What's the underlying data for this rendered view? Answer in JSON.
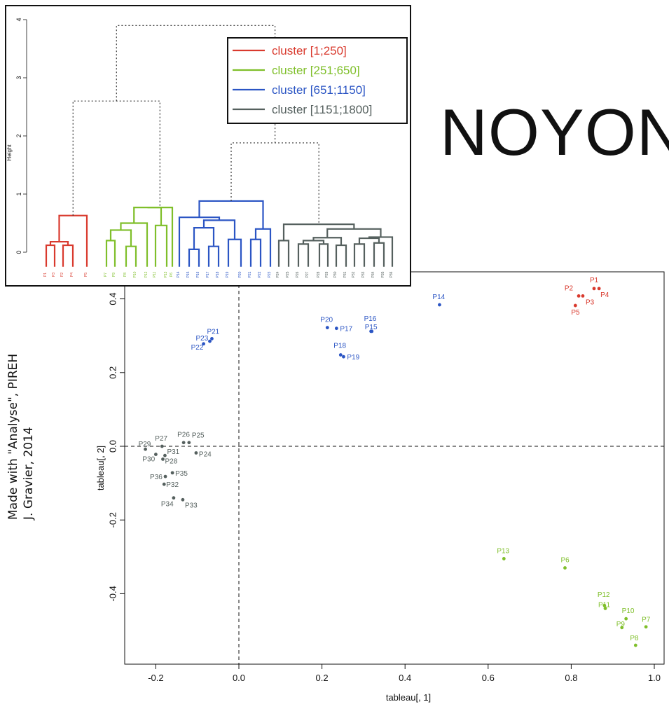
{
  "title": "NOYON",
  "credit": {
    "line1": "Made with \"Analyse\", PIREH",
    "line2": "J. Gravier, 2014"
  },
  "legend": [
    {
      "label": "cluster [1;250]",
      "color": "#d93a2e"
    },
    {
      "label": "cluster [251;650]",
      "color": "#7fbf2a"
    },
    {
      "label": "cluster [651;1150]",
      "color": "#2b55c4"
    },
    {
      "label": "cluster [1151;1800]",
      "color": "#55605e"
    }
  ],
  "dendrogram": {
    "ylabel": "Height",
    "yticks": [
      "0",
      "1",
      "2",
      "3",
      "4"
    ],
    "leaves": [
      "P1",
      "P3",
      "P2",
      "P4",
      "P5",
      "P7",
      "P9",
      "P8",
      "P10",
      "P12",
      "P11",
      "P13",
      "P6",
      "P14",
      "P15",
      "P16",
      "P17",
      "P18",
      "P19",
      "P20",
      "P21",
      "P22",
      "P23",
      "P24",
      "P25",
      "P26",
      "P27",
      "P28",
      "P29",
      "P30",
      "P31",
      "P32",
      "P33",
      "P34",
      "P35",
      "P36"
    ]
  },
  "chart_data": {
    "type": "scatter",
    "xlabel": "tableau[, 1]",
    "ylabel": "tableau[, 2]",
    "xlim": [
      -0.27,
      1.03
    ],
    "ylim": [
      -0.575,
      0.46
    ],
    "xticks": [
      "-0.2",
      "0.0",
      "0.2",
      "0.4",
      "0.6",
      "0.8",
      "1.0"
    ],
    "yticks": [
      "-0.4",
      "-0.2",
      "0.0",
      "0.2",
      "0.4"
    ],
    "reference_lines": {
      "x": 0,
      "y": 0
    },
    "series": [
      {
        "color": "#d93a2e",
        "points": [
          {
            "label": "P1",
            "x": 0.855,
            "y": 0.428
          },
          {
            "label": "P4",
            "x": 0.867,
            "y": 0.428
          },
          {
            "label": "P2",
            "x": 0.818,
            "y": 0.408
          },
          {
            "label": "P3",
            "x": 0.828,
            "y": 0.408
          },
          {
            "label": "P5",
            "x": 0.81,
            "y": 0.382
          }
        ]
      },
      {
        "color": "#7fbf2a",
        "points": [
          {
            "label": "P13",
            "x": 0.638,
            "y": -0.305
          },
          {
            "label": "P6",
            "x": 0.785,
            "y": -0.33
          },
          {
            "label": "P12",
            "x": 0.88,
            "y": -0.432
          },
          {
            "label": "P11",
            "x": 0.882,
            "y": -0.44
          },
          {
            "label": "P10",
            "x": 0.932,
            "y": -0.468
          },
          {
            "label": "P9",
            "x": 0.922,
            "y": -0.492
          },
          {
            "label": "P7",
            "x": 0.98,
            "y": -0.49
          },
          {
            "label": "P8",
            "x": 0.955,
            "y": -0.54
          }
        ]
      },
      {
        "color": "#2b55c4",
        "points": [
          {
            "label": "P14",
            "x": 0.483,
            "y": 0.384
          },
          {
            "label": "P20",
            "x": 0.213,
            "y": 0.322
          },
          {
            "label": "P17",
            "x": 0.235,
            "y": 0.32
          },
          {
            "label": "P16",
            "x": 0.318,
            "y": 0.312
          },
          {
            "label": "P15",
            "x": 0.32,
            "y": 0.312
          },
          {
            "label": "P18",
            "x": 0.245,
            "y": 0.248
          },
          {
            "label": "P19",
            "x": 0.252,
            "y": 0.243
          },
          {
            "label": "P21",
            "x": -0.065,
            "y": 0.292
          },
          {
            "label": "P23",
            "x": -0.07,
            "y": 0.285
          },
          {
            "label": "P22",
            "x": -0.085,
            "y": 0.278
          }
        ]
      },
      {
        "color": "#55605e",
        "points": [
          {
            "label": "P26",
            "x": -0.133,
            "y": 0.01
          },
          {
            "label": "P25",
            "x": -0.12,
            "y": 0.01
          },
          {
            "label": "P27",
            "x": -0.185,
            "y": 0.0
          },
          {
            "label": "P29",
            "x": -0.225,
            "y": -0.008
          },
          {
            "label": "P24",
            "x": -0.103,
            "y": -0.018
          },
          {
            "label": "P30",
            "x": -0.2,
            "y": -0.022
          },
          {
            "label": "P31",
            "x": -0.178,
            "y": -0.025
          },
          {
            "label": "P28",
            "x": -0.183,
            "y": -0.035
          },
          {
            "label": "P35",
            "x": -0.16,
            "y": -0.072
          },
          {
            "label": "P36",
            "x": -0.177,
            "y": -0.082
          },
          {
            "label": "P32",
            "x": -0.18,
            "y": -0.103
          },
          {
            "label": "P34",
            "x": -0.157,
            "y": -0.14
          },
          {
            "label": "P33",
            "x": -0.135,
            "y": -0.145
          }
        ]
      }
    ]
  }
}
